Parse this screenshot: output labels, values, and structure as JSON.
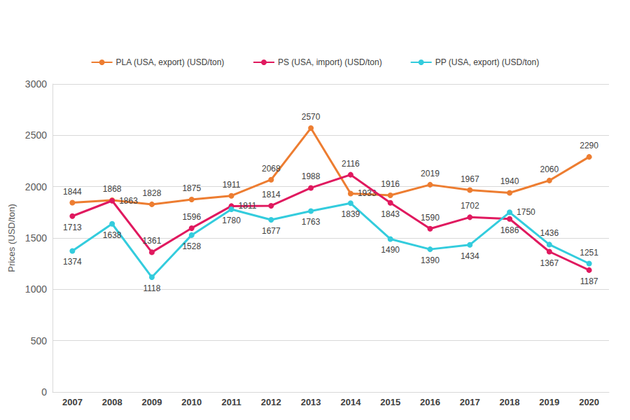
{
  "chart_data": {
    "type": "line",
    "y_label": "Prices (USD/ton)",
    "categories": [
      "2007",
      "2008",
      "2009",
      "2010",
      "2011",
      "2012",
      "2013",
      "2014",
      "2015",
      "2016",
      "2017",
      "2018",
      "2019",
      "2020"
    ],
    "series": [
      {
        "name": "PLA (USA, export) (USD/ton)",
        "color": "#ED7D31",
        "marker": "circle",
        "values": [
          1844,
          1868,
          1828,
          1875,
          1911,
          2068,
          2570,
          1933,
          1916,
          2019,
          1967,
          1940,
          2060,
          2290
        ]
      },
      {
        "name": "PS (USA, import) (USD/ton)",
        "color": "#E0195F",
        "marker": "circle",
        "values": [
          1713,
          1863,
          1361,
          1596,
          1811,
          1814,
          1988,
          2116,
          1843,
          1590,
          1702,
          1686,
          1367,
          1187
        ]
      },
      {
        "name": "PP (USA, export) (USD/ton)",
        "color": "#33CCDD",
        "marker": "circle",
        "values": [
          1374,
          1638,
          1118,
          1528,
          1780,
          1677,
          1763,
          1839,
          1490,
          1390,
          1434,
          1750,
          1436,
          1251
        ]
      }
    ],
    "ylim": [
      0,
      3000
    ],
    "yticks": [
      0,
      500,
      1000,
      1500,
      2000,
      2500,
      3000
    ],
    "grid": true,
    "legend": "top",
    "data_labels": true
  }
}
